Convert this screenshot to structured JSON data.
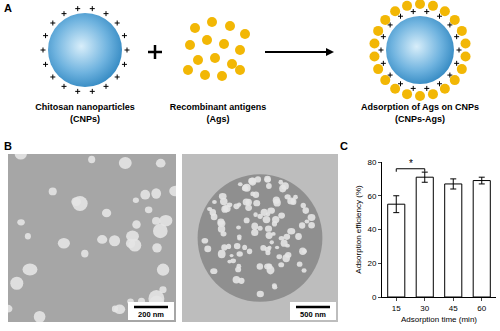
{
  "panel_labels": [
    "A",
    "B",
    "C"
  ],
  "diagram": {
    "items": [
      {
        "label": "Chitosan nanoparticles",
        "sublabel": "(CNPs)"
      },
      {
        "label": "Recombinant antigens",
        "sublabel": "(Ags)"
      },
      {
        "label": "Adsorption of Ags on CNPs",
        "sublabel": "(CNPs-Ags)"
      }
    ]
  },
  "micrographs": [
    {
      "scale_bar": "200 nm"
    },
    {
      "scale_bar": "500 nm"
    }
  ],
  "chart_data": {
    "type": "bar",
    "categories": [
      "15",
      "30",
      "45",
      "60"
    ],
    "values": [
      55,
      71,
      67,
      69
    ],
    "errors": [
      5,
      3,
      3,
      2
    ],
    "color": "#ffffff",
    "xlabel": "Adsorption time (min)",
    "ylabel": "Adsorption efficiency (%)",
    "ylim": [
      0,
      80
    ],
    "yticks": [
      0,
      20,
      40,
      60,
      80
    ],
    "grid": false,
    "significance": {
      "from": "15",
      "to": "30",
      "label": "*",
      "y": 76
    }
  }
}
